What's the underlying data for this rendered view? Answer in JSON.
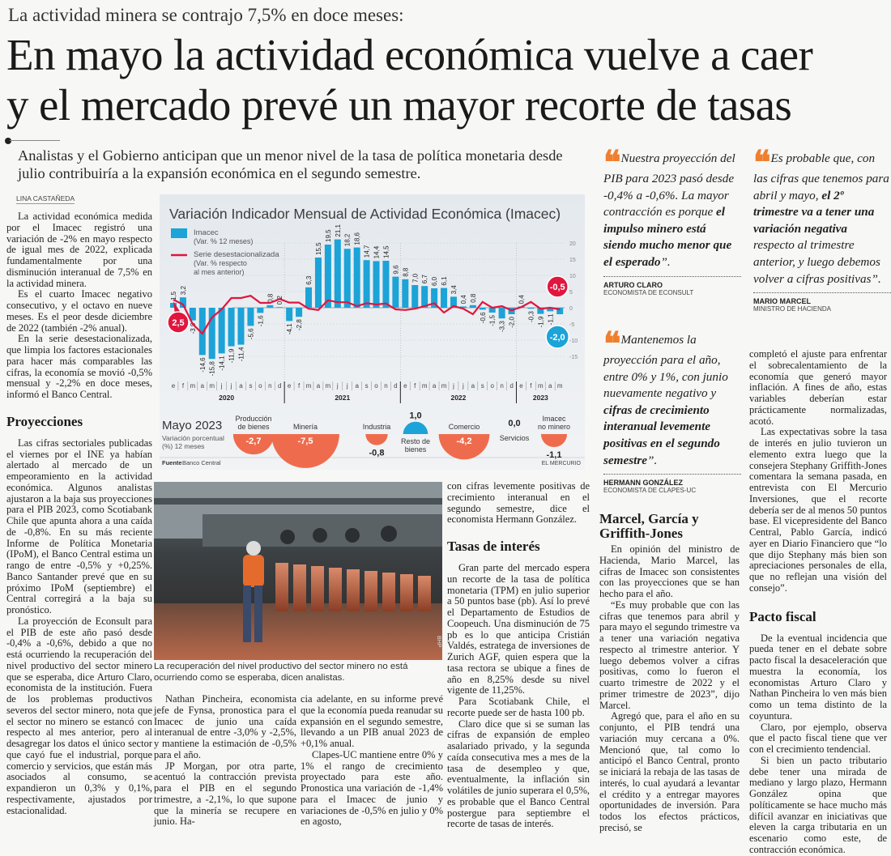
{
  "header": {
    "kicker": "La actividad minera se contrajo 7,5% en doce meses:",
    "headline_line1": "En mayo la actividad económica vuelve a caer",
    "headline_line2": "y el mercado prevé un mayor recorte de tasas",
    "deck": "Analistas y el Gobierno anticipan que un menor nivel de la tasa de política monetaria desde julio contribuiría a la expansión económica en el segundo semestre.",
    "byline": "LINA CASTAÑEDA"
  },
  "colors": {
    "bar": "#1ca3d8",
    "line": "#e0163f",
    "negative_circle": "#ee6c4d",
    "positive_circle": "#1ca3d8",
    "quote_mark": "#ef7f2e"
  },
  "column1": {
    "p1": "La actividad económica medida por el Imacec registró una variación de -2% en mayo respecto de igual mes de 2022, explicada fundamentalmente por una disminución interanual de 7,5% en la actividad minera.",
    "p2": "Es el cuarto Imacec negativo consecutivo, y el octavo en nueve meses. Es el peor desde diciembre de 2022 (también -2% anual).",
    "p3": "En la serie desestacionalizada, que limpia los factores estacionales para hacer más comparables las cifras, la economía se movió -0,5% mensual y -2,2% en doce meses, informó el Banco Central.",
    "heading": "Proyecciones",
    "p4": "Las cifras sectoriales publicadas el viernes por el INE ya habían alertado al mercado de un empeoramiento en la actividad económica. Algunos analistas ajustaron a la baja sus proyecciones para el PIB 2023, como Scotiabank Chile que apunta ahora a una caída de -0,8%. En su más reciente Informe de Política Monetaria (IPoM), el Banco Central estima un rango de entre -0,5% y +0,25%. Banco Santander prevé que en su próximo IPoM (septiembre) el Central corregirá a la baja su pronóstico.",
    "p5": "La proyección de Econsult para el PIB de este año pasó desde -0,4% a -0,6%, debido a que no está ocurriendo la recuperación del nivel productivo del sector minero que se esperaba, dice Arturo Claro, economista de la institución. Fuera de los problemas productivos severos del sector minero, nota que el sector no minero se estancó con respecto al mes anterior, pero al desagregar los datos el único sector que cayó fue el industrial, porque comercio y servicios, que están más asociados al consumo, se expandieron un 0,3% y 0,1%, respectivamente, ajustados por estacionalidad."
  },
  "photo": {
    "caption": "La recuperación del nivel productivo del sector minero no está ocurriendo como se esperaba, dicen analistas.",
    "credit": "BHP"
  },
  "columnA": {
    "p1": "Nathan Pincheira, economista jefe de Fynsa, pronostica para el Imacec de junio una caída interanual de entre -3,0% y -2,5%, y mantiene la estimación de -0,5% para el año.",
    "p2": "JP Morgan, por otra parte, acentuó la contracción prevista para el PIB en el segundo trimestre, a -2,1%, lo que supone que la minería se recupere en junio. Ha-"
  },
  "columnB": {
    "p1": "cia adelante, en su informe prevé que la economía pueda reanudar su expansión en el segundo semestre, llevando a un PIB anual 2023 de +0,1% anual.",
    "p2": "Clapes-UC mantiene entre 0% y 1% el rango de crecimiento proyectado para este año. Pronostica una variación de -1,4% para el Imacec de junio y variaciones de -0,5% en julio y 0% en agosto,"
  },
  "column3": {
    "p1": "con cifras levemente positivas de crecimiento interanual en el segundo semestre, dice el economista Hermann González.",
    "heading": "Tasas de interés",
    "p2": "Gran parte del mercado espera un recorte de la tasa de política monetaria (TPM) en julio superior a 50 puntos base (pb). Así lo prevé el Departamento de Estudios de Coopeuch. Una disminución de 75 pb es lo que anticipa Cristián Valdés, estratega de inversiones de Zurich AGF, quien espera que la tasa rectora se ubique a fines de año en 8,25% desde su nivel vigente de 11,25%.",
    "p3": "Para Scotiabank Chile, el recorte puede ser de hasta 100 pb.",
    "p4": "Claro dice que si se suman las cifras de expansión de empleo asalariado privado, y la segunda caída consecutiva mes a mes de la tasa de desempleo y que, eventualmente, la inflación sin volátiles de junio superara el 0,5%, es probable que el Banco Central postergue para septiembre el recorte de tasas de interés."
  },
  "quotes": [
    {
      "pre": "Nuestra proyección del PIB para 2023 pasó desde -0,4% a -0,6%. La mayor contracción es porque ",
      "bold": "el impulso minero está siendo mucho menor que el esperado",
      "post": "”.",
      "name": "ARTURO CLARO",
      "role": "ECONOMISTA DE ECONSULT"
    },
    {
      "pre": "Es probable que, con las cifras que tenemos para abril y mayo, ",
      "bold": "el 2º trimestre va a tener una variación negativa",
      "post": " respecto al trimestre anterior, y luego debemos volver a cifras positivas”.",
      "name": "MARIO MARCEL",
      "role": "MINISTRO DE HACIENDA"
    },
    {
      "pre": "Mantenemos la proyección para el año, entre 0% y 1%, con junio nuevamente negativo y ",
      "bold": "cifras de crecimiento interanual levemente positivas en el segundo semestre",
      "post": "”.",
      "name": "HERMANN GONZÁLEZ",
      "role": "ECONOMISTA DE CLAPES-UC"
    }
  ],
  "quote_mark": "❝",
  "column4": {
    "heading": "Marcel, García y Griffith-Jones",
    "p1": "En opinión del ministro de Hacienda, Mario Marcel, las cifras de Imacec son consistentes con las proyecciones que se han hecho para el año.",
    "p2": "“Es muy probable que con las cifras que tenemos para abril y para mayo el segundo trimestre va a tener una variación negativa respecto al trimestre anterior. Y luego debemos volver a cifras positivas, como lo fueron el cuarto trimestre de 2022 y el primer trimestre de 2023”, dijo Marcel.",
    "p3": "Agregó que, para el año en su conjunto, el PIB tendrá una variación muy cercana a 0%. Mencionó que, tal como lo anticipó el Banco Central, pronto se iniciará la rebaja de las tasas de interés, lo cual ayudará a levantar el crédito y a entregar mayores oportunidades de inversión. Para todos los efectos prácticos, precisó, se"
  },
  "column5": {
    "p1": "completó el ajuste para enfrentar el sobrecalentamiento de la economía que generó mayor inflación. A fines de año, estas variables deberían estar prácticamente normalizadas, acotó.",
    "p2": "Las expectativas sobre la tasa de interés en julio tuvieron un elemento extra luego que la consejera Stephany Griffith-Jones comentara la semana pasada, en entrevista con El Mercurio Inversiones, que el recorte debería ser de al menos 50 puntos base. El vicepresidente del Banco Central, Pablo García, indicó ayer en Diario Financiero que “lo que dijo Stephany más bien son apreciaciones personales de ella, que no reflejan una visión del consejo”.",
    "heading": "Pacto fiscal",
    "p3": "De la eventual incidencia que pueda tener en el debate sobre pacto fiscal la desaceleración que muestra la economía, los economistas Arturo Claro y Nathan Pincheira lo ven más bien como un tema distinto de la coyuntura.",
    "p4": "Claro, por ejemplo, observa que el pacto fiscal tiene que ver con el crecimiento tendencial.",
    "p5": "Si bien un pacto tributario debe tener una mirada de mediano y largo plazo, Hermann González opina que políticamente se hace mucho más difícil avanzar en iniciativas que eleven la carga tributaria en un escenario como este, de contracción económica."
  },
  "chart_data": [
    {
      "type": "bar",
      "title": "Variación Indicador Mensual de Actividad Económica (Imacec)",
      "legend": [
        {
          "label": "Imacec",
          "sub": [
            "(Var. % 12 meses)"
          ]
        },
        {
          "label": "Serie desestacionalizada",
          "sub": [
            "(Var. % respecto",
            "al mes anterior)"
          ]
        }
      ],
      "months": [
        "e",
        "f",
        "m",
        "a",
        "m",
        "j",
        "j",
        "a",
        "s",
        "o",
        "n",
        "d",
        "e",
        "f",
        "m",
        "a",
        "m",
        "j",
        "j",
        "a",
        "s",
        "o",
        "n",
        "d",
        "e",
        "f",
        "m",
        "a",
        "m",
        "j",
        "j",
        "a",
        "s",
        "o",
        "n",
        "d",
        "e",
        "f",
        "m",
        "a",
        "m"
      ],
      "years": [
        {
          "label": "2020",
          "start": 0,
          "count": 12
        },
        {
          "label": "2021",
          "start": 12,
          "count": 12
        },
        {
          "label": "2022",
          "start": 24,
          "count": 12
        },
        {
          "label": "2023",
          "start": 36,
          "count": 5
        }
      ],
      "series": [
        {
          "name": "Imacec (Var. % 12 meses)",
          "type": "bar",
          "values": [
            1.5,
            3.2,
            -3.9,
            -14.6,
            -15.8,
            -14.1,
            -11.9,
            -11.4,
            -5.6,
            -1.6,
            0.8,
            0.2,
            -4.1,
            -2.8,
            6.3,
            15.5,
            19.5,
            21.1,
            18.2,
            18.6,
            14.7,
            14.4,
            14.5,
            9.6,
            8.8,
            7.0,
            6.7,
            6.0,
            6.1,
            3.4,
            0.4,
            0.8,
            -0.6,
            -1.5,
            -3.3,
            -2.0,
            0.4,
            -0.3,
            -1.9,
            -1.1,
            -2.0
          ],
          "labels": [
            "1,5",
            "3,2",
            "-3,9",
            "-14,6",
            "-15,8",
            "-14,1",
            "-11,9",
            "-11,4",
            "-5,6",
            "-1,6",
            "0,8",
            "0,2",
            "-4,1",
            "-2,8",
            "6,3",
            "15,5",
            "19,5",
            "21,1",
            "18,2",
            "18,6",
            "14,7",
            "14,4",
            "14,5",
            "9,6",
            "8,8",
            "7,0",
            "6,7",
            "6,0",
            "6,1",
            "3,4",
            "0,4",
            "0,8",
            "-0,6",
            "-1,5",
            "-3,3",
            "-2,0",
            "0,4",
            "-0,3",
            "-1,9",
            "-1,1",
            ""
          ]
        },
        {
          "name": "Serie desestacionalizada (Var. % respecto al mes anterior)",
          "type": "line",
          "values": [
            2.5,
            1.0,
            -5.0,
            -8.0,
            -3.0,
            -0.5,
            3.0,
            3.0,
            3.7,
            1.5,
            1.5,
            2.7,
            1.6,
            1.6,
            -0.3,
            -0.7,
            2.3,
            1.7,
            1.7,
            0.5,
            1.4,
            1.0,
            1.3,
            -0.5,
            -0.7,
            -0.3,
            0.5,
            1.4,
            -1.5,
            0.5,
            -0.3,
            -2.0,
            1.8,
            0.0,
            0.5,
            -0.8,
            0.2,
            1.8,
            -0.3,
            0.0,
            -0.5
          ]
        }
      ],
      "callouts": {
        "line_first": "2,5",
        "line_last": "-0,5",
        "bar_last": "-2,0"
      },
      "ylim": [
        -16,
        22
      ],
      "yticks": [
        20,
        15,
        10,
        5,
        0,
        -5,
        -10,
        -15
      ],
      "grid": true,
      "legend_position": "top-left"
    },
    {
      "type": "bubble",
      "title": "Mayo 2023",
      "subtitle": [
        "Variación porcentual",
        "(%) 12 meses"
      ],
      "categories": [
        {
          "label": [
            "Producción",
            "de bienes"
          ],
          "value": -2.7,
          "text": "-2,7"
        },
        {
          "label": [
            "Minería"
          ],
          "value": -7.5,
          "text": "-7,5"
        },
        {
          "label": [
            "Industria"
          ],
          "value": -0.8,
          "text": "-0,8"
        },
        {
          "label": [
            "Resto de",
            "bienes"
          ],
          "value": 1.0,
          "text": "1,0"
        },
        {
          "label": [
            "Comercio"
          ],
          "value": -4.2,
          "text": "-4,2"
        },
        {
          "label": [
            "Servicios"
          ],
          "value": 0.0,
          "text": "0,0"
        },
        {
          "label": [
            "Imacec",
            "no minero"
          ],
          "value": -1.1,
          "text": "-1,1"
        }
      ],
      "source_label": "Fuente",
      "source": "Banco Central",
      "publisher": "EL MERCURIO"
    }
  ]
}
